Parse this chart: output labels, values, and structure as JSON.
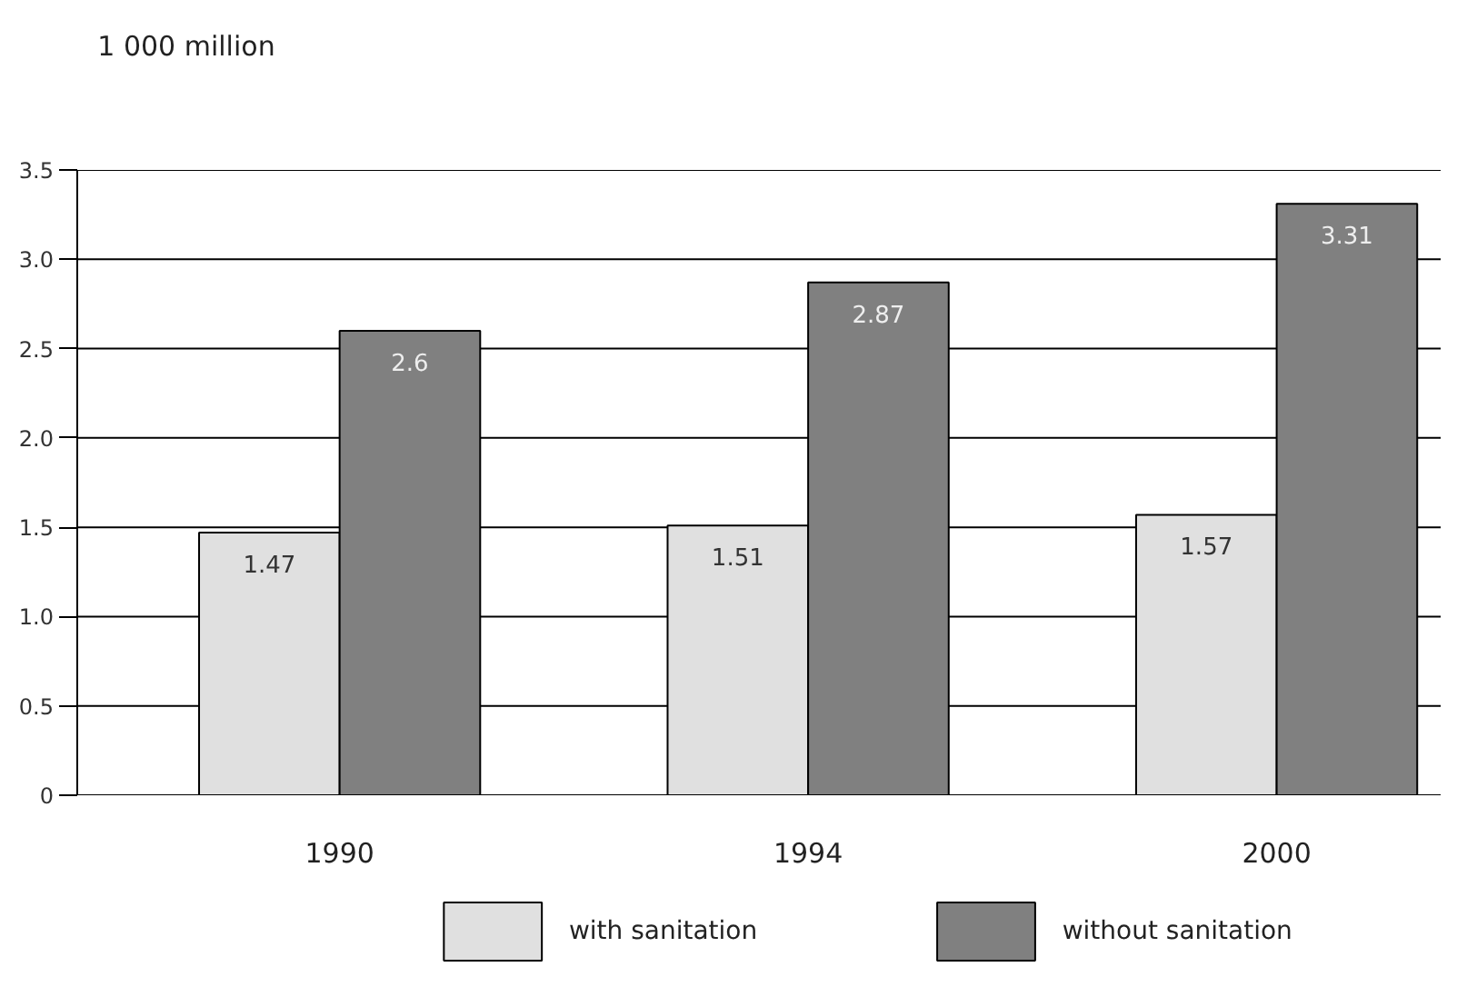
{
  "chart_data": {
    "type": "bar",
    "ylabel": "1 000 million",
    "categories": [
      "1990",
      "1994",
      "2000"
    ],
    "series": [
      {
        "name": "with sanitation",
        "color": "#e0e0e0",
        "values": [
          1.47,
          1.51,
          1.57
        ]
      },
      {
        "name": "without sanitation",
        "color": "#808080",
        "values": [
          2.6,
          2.87,
          3.31
        ]
      }
    ],
    "ylim": [
      0,
      3.5
    ],
    "yticks": [
      0,
      0.5,
      {
        "value": 1,
        "label": "1.0"
      },
      1.5,
      {
        "value": 2,
        "label": "2.0"
      },
      2.5,
      {
        "value": 3,
        "label": "3.0"
      },
      3.5
    ],
    "grid": "y",
    "legend": "bottom",
    "data_labels": true
  }
}
